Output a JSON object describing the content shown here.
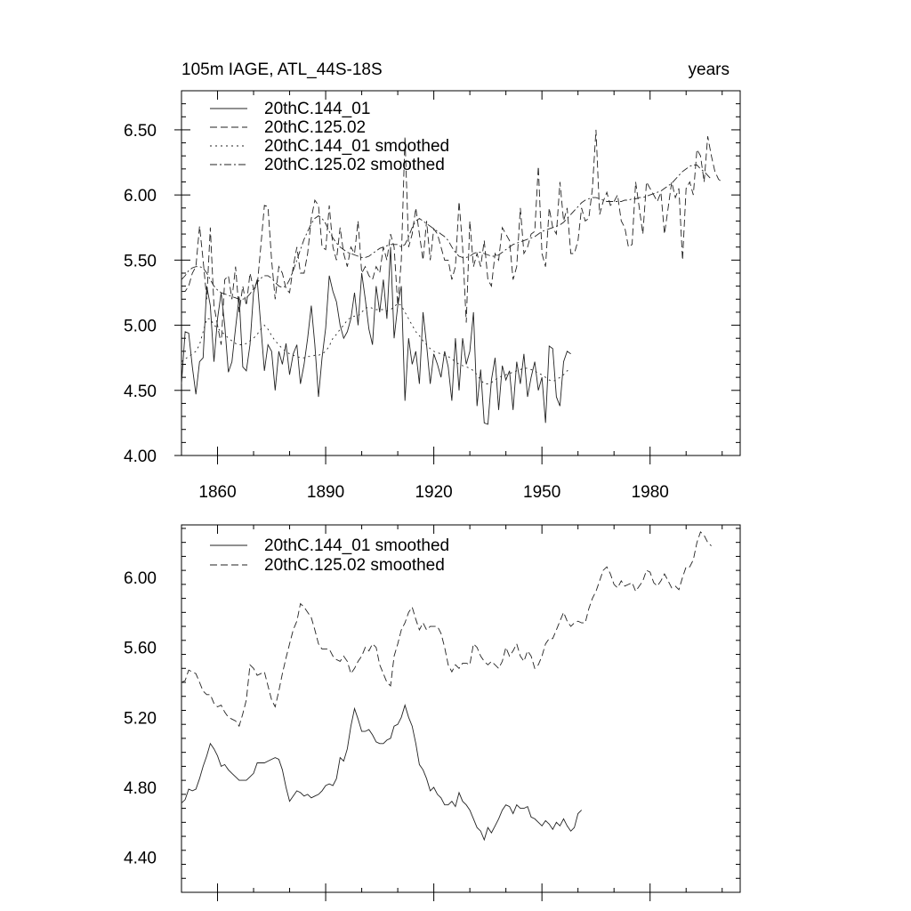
{
  "chart_data": [
    {
      "type": "line",
      "title": "105m IAGE, ATL_44S-18S",
      "title_right": "years",
      "xlabel": "",
      "ylabel": "",
      "xlim": [
        1850,
        2005
      ],
      "ylim": [
        4.0,
        6.8
      ],
      "x_ticks": [
        1860,
        1890,
        1920,
        1950,
        1980
      ],
      "x_tick_labels": [
        "1860",
        "1890",
        "1920",
        "1950",
        "1980"
      ],
      "y_ticks": [
        4.0,
        4.5,
        5.0,
        5.5,
        6.0,
        6.5
      ],
      "y_tick_labels": [
        "4.00",
        "4.50",
        "5.00",
        "5.50",
        "6.00",
        "6.50"
      ],
      "grid": false,
      "legend_position": "top-left",
      "series": [
        {
          "name": "20thC.144_01",
          "dash": "solid",
          "x_start": 1850,
          "values": [
            4.55,
            4.95,
            4.94,
            4.68,
            4.47,
            4.72,
            4.75,
            5.3,
            5.15,
            4.72,
            5.05,
            5.25,
            5.0,
            4.64,
            4.72,
            4.98,
            5.22,
            4.68,
            4.65,
            4.85,
            5.25,
            5.35,
            5.0,
            4.65,
            4.85,
            4.8,
            4.5,
            4.8,
            4.7,
            4.86,
            4.62,
            4.78,
            4.85,
            4.55,
            4.7,
            4.9,
            5.15,
            4.85,
            4.45,
            4.75,
            4.98,
            5.38,
            5.26,
            5.18,
            5.0,
            4.9,
            4.95,
            5.05,
            5.25,
            5.0,
            5.4,
            5.2,
            4.97,
            4.85,
            5.3,
            5.1,
            5.35,
            5.05,
            5.6,
            4.9,
            5.15,
            5.3,
            4.42,
            4.9,
            4.7,
            4.8,
            4.55,
            5.1,
            4.85,
            4.55,
            4.78,
            4.7,
            4.6,
            4.8,
            4.68,
            4.42,
            4.9,
            4.5,
            4.9,
            4.7,
            4.8,
            5.1,
            4.38,
            4.66,
            4.25,
            4.24,
            4.58,
            4.75,
            4.35,
            4.69,
            4.58,
            4.65,
            4.35,
            4.72,
            4.55,
            4.78,
            4.45,
            4.6,
            4.72,
            4.5,
            4.6,
            4.25,
            4.84,
            4.82,
            4.45,
            4.38,
            4.72,
            4.8,
            4.78
          ]
        },
        {
          "name": "20thC.125.02",
          "dash": "long-dash",
          "x_start": 1850,
          "values": [
            5.26,
            5.26,
            5.3,
            5.4,
            5.45,
            5.76,
            5.5,
            5.2,
            5.75,
            5.15,
            5.0,
            4.85,
            5.35,
            5.38,
            5.2,
            5.45,
            5.1,
            5.3,
            5.15,
            5.4,
            5.28,
            5.3,
            5.6,
            5.92,
            5.91,
            5.5,
            5.2,
            5.45,
            5.4,
            5.28,
            5.25,
            5.45,
            5.6,
            5.4,
            5.4,
            5.55,
            5.82,
            5.96,
            5.92,
            5.6,
            5.58,
            5.92,
            5.6,
            5.5,
            5.75,
            5.55,
            5.45,
            5.6,
            5.55,
            5.8,
            5.4,
            5.45,
            5.38,
            5.35,
            5.45,
            5.4,
            5.6,
            5.5,
            5.7,
            5.6,
            5.15,
            5.5,
            6.45,
            5.6,
            5.7,
            5.9,
            5.7,
            5.5,
            5.8,
            5.5,
            5.74,
            5.7,
            5.6,
            5.5,
            5.5,
            5.35,
            5.45,
            5.95,
            5.6,
            5.02,
            5.8,
            5.45,
            5.55,
            5.45,
            5.65,
            5.35,
            5.3,
            5.55,
            5.5,
            5.75,
            5.7,
            5.65,
            5.35,
            5.45,
            5.9,
            5.55,
            5.6,
            5.7,
            5.72,
            6.22,
            5.55,
            5.45,
            5.9,
            5.75,
            5.7,
            6.1,
            5.8,
            5.9,
            5.55,
            5.55,
            5.65,
            5.9,
            5.8,
            5.82,
            6.05,
            6.5,
            5.85,
            5.95,
            6.02,
            5.92,
            5.95,
            6.0,
            5.8,
            5.75,
            5.6,
            5.62,
            6.1,
            5.9,
            5.7,
            6.1,
            6.05,
            6.0,
            5.95,
            6.02,
            5.7,
            5.9,
            6.1,
            5.98,
            6.05,
            5.5,
            6.05,
            6.1,
            6.0,
            6.35,
            6.3,
            6.1,
            6.45,
            6.3,
            6.18,
            6.12,
            6.1
          ]
        },
        {
          "name": "20thC.144_01 smoothed",
          "dash": "dotted",
          "x_start": 1850,
          "values": [
            4.72,
            4.74,
            4.76,
            4.78,
            4.8,
            4.85,
            4.95,
            5.05,
            5.05,
            5.0,
            4.98,
            4.95,
            4.93,
            4.9,
            4.88,
            4.86,
            4.85,
            4.85,
            4.86,
            4.88,
            4.9,
            4.93,
            4.97,
            5.0,
            4.97,
            4.92,
            4.88,
            4.85,
            4.82,
            4.8,
            4.78,
            4.77,
            4.76,
            4.75,
            4.75,
            4.76,
            4.76,
            4.77,
            4.77,
            4.78,
            4.8,
            4.84,
            4.9,
            4.93,
            4.97,
            5.0,
            5.04,
            5.06,
            5.07,
            5.07,
            5.1,
            5.13,
            5.14,
            5.13,
            5.12,
            5.12,
            5.12,
            5.11,
            5.12,
            5.14,
            5.17,
            5.15,
            5.1,
            5.05,
            5.0,
            4.95,
            4.92,
            4.88,
            4.85,
            4.82,
            4.8,
            4.79,
            4.78,
            4.77,
            4.76,
            4.74,
            4.72,
            4.7,
            4.69,
            4.68,
            4.67,
            4.65,
            4.62,
            4.58,
            4.55,
            4.55,
            4.56,
            4.58,
            4.6,
            4.61,
            4.62,
            4.63,
            4.64,
            4.65,
            4.66,
            4.67,
            4.67,
            4.66,
            4.65,
            4.63,
            4.62,
            4.6,
            4.58,
            4.57,
            4.58,
            4.6,
            4.62,
            4.65,
            4.67
          ]
        },
        {
          "name": "20thC.125.02 smoothed",
          "dash": "dash-dot",
          "x_start": 1850,
          "values": [
            5.35,
            5.38,
            5.42,
            5.44,
            5.45,
            5.45,
            5.44,
            5.4,
            5.35,
            5.3,
            5.27,
            5.25,
            5.24,
            5.23,
            5.22,
            5.21,
            5.2,
            5.2,
            5.21,
            5.24,
            5.28,
            5.33,
            5.36,
            5.38,
            5.38,
            5.36,
            5.33,
            5.3,
            5.29,
            5.3,
            5.35,
            5.42,
            5.5,
            5.58,
            5.66,
            5.72,
            5.78,
            5.82,
            5.84,
            5.82,
            5.78,
            5.72,
            5.67,
            5.63,
            5.6,
            5.58,
            5.56,
            5.55,
            5.54,
            5.53,
            5.52,
            5.52,
            5.53,
            5.55,
            5.57,
            5.59,
            5.6,
            5.61,
            5.62,
            5.62,
            5.62,
            5.6,
            5.62,
            5.68,
            5.75,
            5.8,
            5.82,
            5.8,
            5.78,
            5.76,
            5.74,
            5.72,
            5.7,
            5.68,
            5.65,
            5.6,
            5.56,
            5.53,
            5.52,
            5.52,
            5.53,
            5.55,
            5.56,
            5.56,
            5.55,
            5.54,
            5.53,
            5.53,
            5.54,
            5.56,
            5.58,
            5.6,
            5.62,
            5.63,
            5.64,
            5.65,
            5.66,
            5.67,
            5.68,
            5.7,
            5.72,
            5.73,
            5.74,
            5.75,
            5.76,
            5.77,
            5.79,
            5.82,
            5.85,
            5.88,
            5.91,
            5.94,
            5.96,
            5.97,
            5.98,
            5.98,
            5.97,
            5.96,
            5.95,
            5.95,
            5.95,
            5.95,
            5.95,
            5.96,
            5.96,
            5.97,
            5.97,
            5.98,
            5.98,
            5.99,
            6.0,
            6.01,
            6.02,
            6.03,
            6.05,
            6.07,
            6.09,
            6.12,
            6.15,
            6.18,
            6.2,
            6.22,
            6.23,
            6.23,
            6.2,
            6.18,
            6.15,
            6.12
          ]
        }
      ]
    },
    {
      "type": "line",
      "title": "",
      "xlabel": "",
      "ylabel": "",
      "xlim": [
        1850,
        2005
      ],
      "ylim": [
        4.2,
        6.3
      ],
      "x_ticks": [
        1860,
        1890,
        1920,
        1950,
        1980
      ],
      "y_ticks": [
        4.4,
        4.8,
        5.2,
        5.6,
        6.0
      ],
      "y_tick_labels": [
        "4.40",
        "4.80",
        "5.20",
        "5.60",
        "6.00"
      ],
      "grid": false,
      "legend_position": "top-left",
      "series": [
        {
          "name": "20thC.144_01 smoothed",
          "dash": "solid",
          "x_start": 1850,
          "values": [
            4.71,
            4.73,
            4.79,
            4.78,
            4.79,
            4.85,
            4.92,
            4.98,
            5.05,
            5.02,
            4.98,
            4.92,
            4.93,
            4.9,
            4.88,
            4.86,
            4.84,
            4.84,
            4.84,
            4.86,
            4.88,
            4.94,
            4.94,
            4.94,
            4.95,
            4.96,
            4.97,
            4.96,
            4.9,
            4.8,
            4.72,
            4.75,
            4.78,
            4.77,
            4.75,
            4.76,
            4.74,
            4.75,
            4.76,
            4.78,
            4.81,
            4.82,
            4.81,
            4.85,
            4.97,
            4.95,
            5.02,
            5.15,
            5.25,
            5.19,
            5.12,
            5.12,
            5.13,
            5.1,
            5.06,
            5.05,
            5.05,
            5.07,
            5.08,
            5.15,
            5.16,
            5.2,
            5.27,
            5.2,
            5.15,
            5.05,
            4.93,
            4.9,
            4.85,
            4.78,
            4.8,
            4.76,
            4.74,
            4.7,
            4.7,
            4.72,
            4.69,
            4.77,
            4.72,
            4.7,
            4.67,
            4.62,
            4.57,
            4.55,
            4.5,
            4.57,
            4.54,
            4.58,
            4.62,
            4.67,
            4.7,
            4.69,
            4.65,
            4.7,
            4.68,
            4.68,
            4.69,
            4.63,
            4.62,
            4.6,
            4.58,
            4.61,
            4.59,
            4.56,
            4.6,
            4.58,
            4.62,
            4.58,
            4.55,
            4.57,
            4.65,
            4.67
          ]
        },
        {
          "name": "20thC.125.02 smoothed",
          "dash": "long-dash",
          "x_start": 1850,
          "values": [
            5.4,
            5.41,
            5.47,
            5.46,
            5.45,
            5.4,
            5.35,
            5.33,
            5.33,
            5.28,
            5.26,
            5.27,
            5.23,
            5.2,
            5.19,
            5.18,
            5.15,
            5.22,
            5.3,
            5.5,
            5.48,
            5.44,
            5.45,
            5.46,
            5.38,
            5.3,
            5.26,
            5.35,
            5.45,
            5.54,
            5.62,
            5.7,
            5.75,
            5.85,
            5.83,
            5.8,
            5.77,
            5.7,
            5.62,
            5.59,
            5.59,
            5.59,
            5.55,
            5.53,
            5.52,
            5.55,
            5.52,
            5.45,
            5.48,
            5.52,
            5.55,
            5.6,
            5.58,
            5.62,
            5.6,
            5.5,
            5.45,
            5.4,
            5.38,
            5.55,
            5.62,
            5.7,
            5.74,
            5.8,
            5.83,
            5.76,
            5.7,
            5.74,
            5.7,
            5.72,
            5.72,
            5.72,
            5.68,
            5.6,
            5.5,
            5.46,
            5.5,
            5.48,
            5.51,
            5.51,
            5.5,
            5.62,
            5.6,
            5.55,
            5.52,
            5.5,
            5.52,
            5.5,
            5.48,
            5.52,
            5.6,
            5.55,
            5.58,
            5.62,
            5.55,
            5.52,
            5.58,
            5.55,
            5.48,
            5.5,
            5.55,
            5.62,
            5.65,
            5.65,
            5.7,
            5.75,
            5.8,
            5.75,
            5.72,
            5.74,
            5.75,
            5.74,
            5.74,
            5.82,
            5.88,
            5.92,
            5.98,
            6.04,
            6.06,
            6.02,
            5.96,
            5.94,
            5.98,
            5.95,
            5.96,
            5.97,
            5.92,
            5.95,
            5.98,
            6.04,
            6.03,
            5.97,
            5.95,
            5.98,
            6.02,
            5.98,
            5.94,
            5.95,
            5.93,
            6.0,
            6.06,
            6.06,
            6.1,
            6.2,
            6.26,
            6.24,
            6.2,
            6.18
          ]
        }
      ]
    }
  ]
}
